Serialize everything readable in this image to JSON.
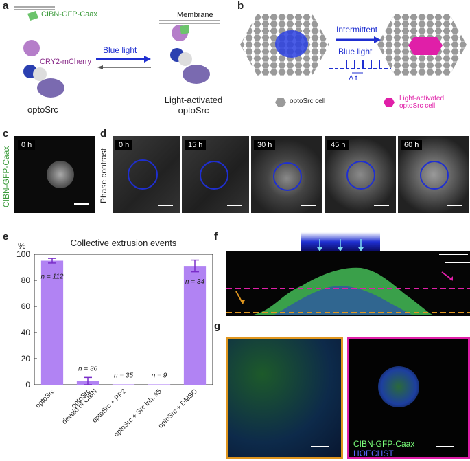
{
  "panels": {
    "a": "a",
    "b": "b",
    "c": "c",
    "d": "d",
    "e": "e",
    "f": "f",
    "g": "g"
  },
  "a": {
    "cibn": "CIBN-GFP-Caax",
    "membrane": "Membrane",
    "cry2": "CRY2-mCherry",
    "blue_light": "Blue light",
    "optosrc": "optoSrc",
    "activated": "Light-activated\noptoSrc"
  },
  "b": {
    "intermittent": "Intermittent",
    "blue_light": "Blue light",
    "dt": "Δ t",
    "legend_cell": "optoSrc cell",
    "legend_activated": "Light-activated\noptoSrc cell"
  },
  "c": {
    "side_label": "CIBN-GFP-Caax",
    "time": "0 h"
  },
  "d": {
    "side_label": "Phase contrast",
    "times": [
      "0 h",
      "15 h",
      "30 h",
      "45 h",
      "60 h"
    ]
  },
  "f": {},
  "g": {
    "label_gfp": "CIBN-GFP-Caax",
    "label_hoechst": "HOECHST"
  },
  "colors": {
    "bar": "#b183f3",
    "err": "#7a2dc9",
    "blue": "#1f2fd1",
    "magenta": "#e01fa8",
    "orange": "#e0961f",
    "green": "#3a9a3a"
  },
  "chart_data": {
    "type": "bar",
    "title": "Collective extrusion events",
    "ylabel": "%",
    "ylim": [
      0,
      100
    ],
    "yticks": [
      0,
      20,
      40,
      60,
      80,
      100
    ],
    "categories": [
      "optoSrc",
      "optoSrc\ndevoid of CIBN",
      "optoSrc + PP2",
      "optoSrc + Src inh. #5",
      "optoSrc + DMSO"
    ],
    "values": [
      95,
      2.8,
      0.3,
      0.3,
      91
    ],
    "errors": [
      1.8,
      2.8,
      0,
      0,
      4.5
    ],
    "n_labels": [
      "n = 112",
      "n = 36",
      "n = 35",
      "n = 9",
      "n = 34"
    ]
  }
}
